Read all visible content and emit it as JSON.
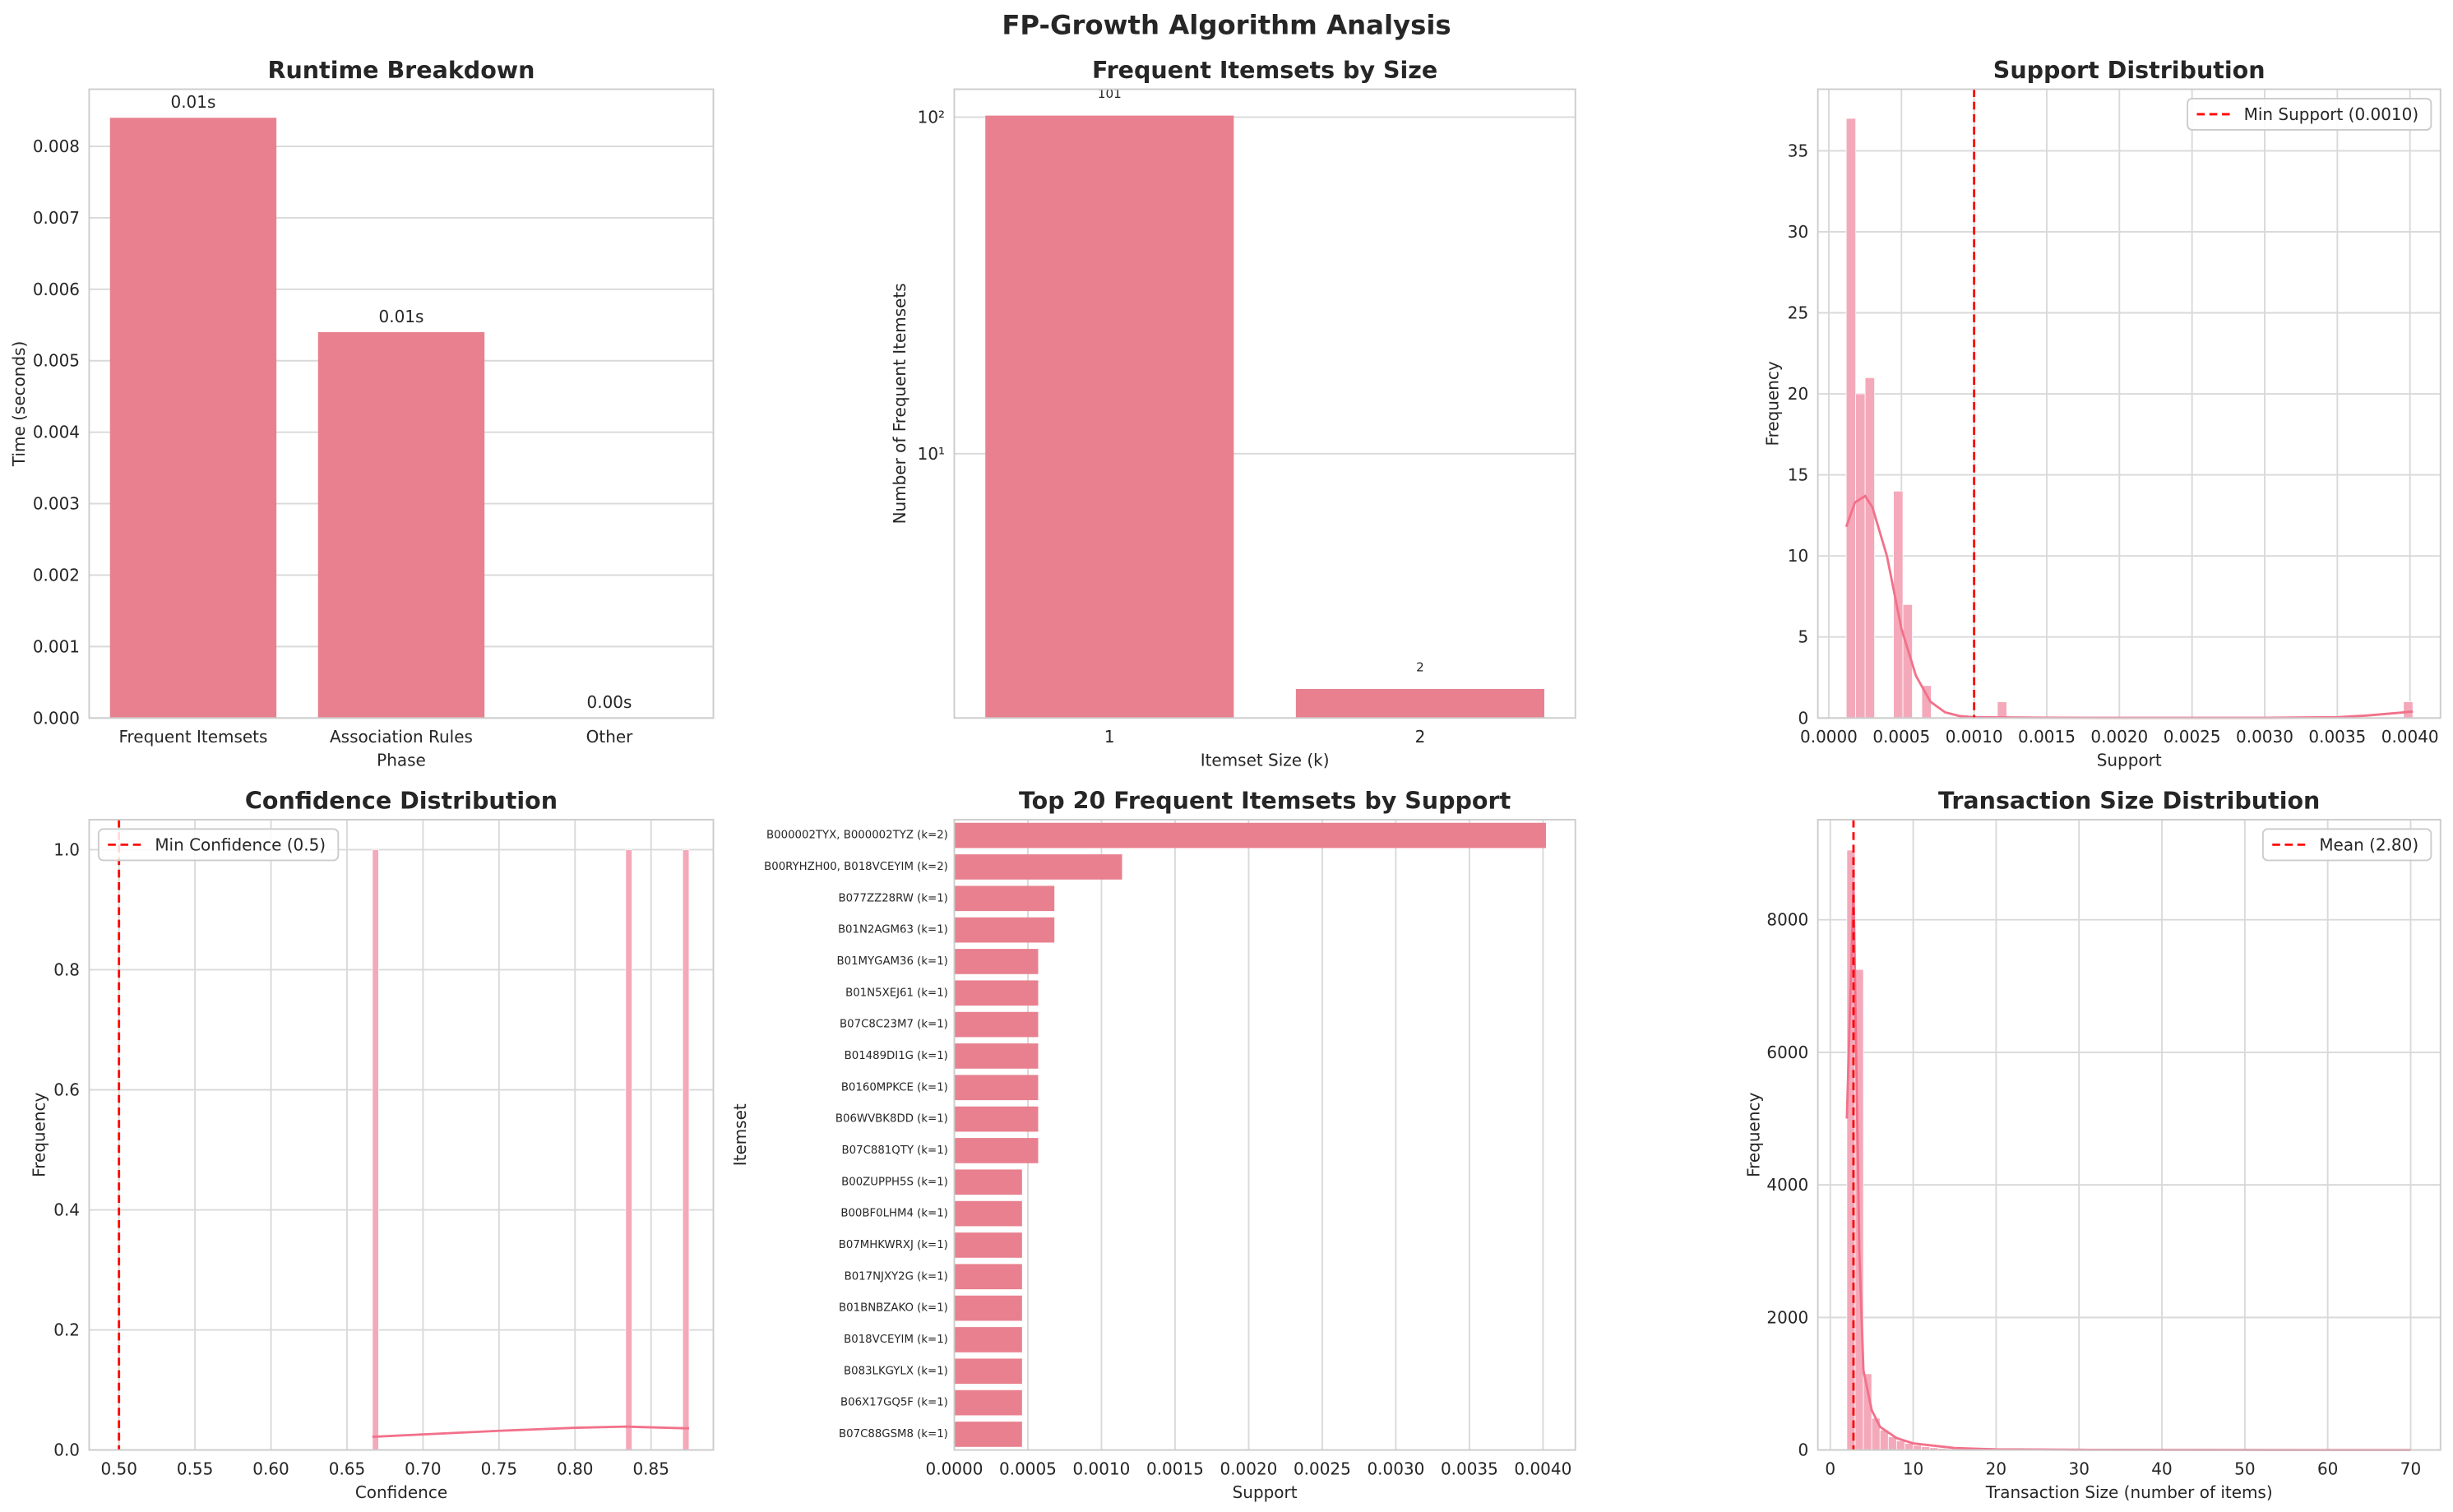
{
  "title": "FP-Growth Algorithm Analysis",
  "chart_data": [
    {
      "type": "bar",
      "title": "Runtime Breakdown",
      "xlabel": "Phase",
      "ylabel": "Time (seconds)",
      "categories": [
        "Frequent Itemsets",
        "Association Rules",
        "Other"
      ],
      "values": [
        0.0084,
        0.0054,
        0
      ],
      "value_labels": [
        "0.01s",
        "0.01s",
        "0.00s"
      ],
      "color": "#e8808f",
      "ylim": [
        0,
        0.0088
      ],
      "yticks": [
        {
          "value": 0,
          "label": "0.000"
        },
        0.001,
        0.002,
        0.003,
        0.004,
        0.005,
        0.006,
        0.007,
        0.008
      ],
      "grid": "y"
    },
    {
      "type": "bar",
      "title": "Frequent Itemsets by Size",
      "xlabel": "Itemset Size (k)",
      "ylabel": "Number of Frequent Itemsets",
      "categories": [
        "1",
        "2"
      ],
      "values": [
        101,
        2
      ],
      "color": "#e8808f",
      "log_y": true,
      "ylim": [
        1.64,
        121
      ],
      "yticks": [
        {
          "value": 10,
          "label": "10¹"
        },
        {
          "value": 100,
          "label": "10²"
        }
      ],
      "grid": "y"
    },
    {
      "type": "histogram",
      "title": "Support Distribution",
      "xlabel": "Support",
      "ylabel": "Frequency",
      "bins": [
        0.00012,
        0.000185,
        0.00025,
        0.000315,
        0.00038,
        0.000445,
        0.00051,
        0.000575,
        0.00064,
        0.000705,
        0.00077,
        0.000835,
        0.0009,
        0.000965,
        0.00103,
        0.001095,
        0.00116,
        0.001225,
        0.00129,
        0.001355,
        0.00142,
        0.001485,
        0.00155,
        0.001615,
        0.00168,
        0.001745,
        0.00181,
        0.001875,
        0.00194,
        0.002005,
        0.00207,
        0.002135,
        0.0022,
        0.002265,
        0.00233,
        0.002395,
        0.00246,
        0.002525,
        0.00259,
        0.002655,
        0.00272,
        0.002785,
        0.00285,
        0.002915,
        0.00298,
        0.003045,
        0.00311,
        0.003175,
        0.00324,
        0.003305,
        0.00337,
        0.003435,
        0.0035,
        0.003565,
        0.00363,
        0.003695,
        0.00376,
        0.003825,
        0.00389,
        0.003955,
        0.00402
      ],
      "counts": [
        37,
        20,
        21,
        0,
        0,
        14,
        7,
        0,
        2,
        0,
        0,
        0,
        0,
        0,
        0,
        0,
        1,
        0,
        0,
        0,
        0,
        0,
        0,
        0,
        0,
        0,
        0,
        0,
        0,
        0,
        0,
        0,
        0,
        0,
        0,
        0,
        0,
        0,
        0,
        0,
        0,
        0,
        0,
        0,
        0,
        0,
        0,
        0,
        0,
        0,
        0,
        0,
        0,
        0,
        0,
        0,
        0,
        0,
        0,
        1
      ],
      "color": "#f4a9ba",
      "kde": {
        "x": [
          0.00012,
          0.00018,
          0.00025,
          0.0003,
          0.0004,
          0.0005,
          0.0006,
          0.0007,
          0.0008,
          0.0009,
          0.001,
          0.0015,
          0.002,
          0.0025,
          0.003,
          0.0035,
          0.0037,
          0.0039,
          0.00402
        ],
        "values": [
          11.8,
          13.3,
          13.7,
          13,
          10,
          5.5,
          2.6,
          1,
          0.35,
          0.12,
          0.05,
          0.02,
          0.01,
          0.01,
          0.01,
          0.05,
          0.15,
          0.3,
          0.4
        ],
        "color": "#f2718a"
      },
      "vline": {
        "value": 0.001,
        "label": "Min Support (0.0010)",
        "color": "red"
      },
      "legend": "upper right",
      "xlim": [
        -7.55e-05,
        0.00421
      ],
      "ylim": [
        0,
        38.8
      ],
      "xticks": [
        {
          "value": 0,
          "label": "0.0000"
        },
        0.0005,
        {
          "value": 0.001,
          "label": "0.0010"
        },
        0.0015,
        {
          "value": 0.002,
          "label": "0.0020"
        },
        0.0025,
        {
          "value": 0.003,
          "label": "0.0030"
        },
        0.0035,
        {
          "value": 0.004,
          "label": "0.0040"
        }
      ],
      "yticks": [
        0,
        5,
        10,
        15,
        20,
        25,
        30,
        35
      ],
      "grid": "both"
    },
    {
      "type": "histogram",
      "title": "Confidence Distribution",
      "xlabel": "Confidence",
      "ylabel": "Frequency",
      "bins": [
        0.6667,
        0.6708,
        0.675,
        0.6792,
        0.6833,
        0.6875,
        0.6917,
        0.6958,
        0.7,
        0.7042,
        0.7083,
        0.7125,
        0.7167,
        0.7208,
        0.725,
        0.7292,
        0.7333,
        0.7375,
        0.7417,
        0.7458,
        0.75,
        0.7542,
        0.7583,
        0.7625,
        0.7667,
        0.7708,
        0.775,
        0.7792,
        0.7833,
        0.7875,
        0.7917,
        0.7958,
        0.8,
        0.8042,
        0.8083,
        0.8125,
        0.8167,
        0.8208,
        0.825,
        0.8292,
        0.8333,
        0.8375,
        0.8417,
        0.8458,
        0.85,
        0.8542,
        0.8583,
        0.8625,
        0.8667,
        0.8708,
        0.875
      ],
      "counts": [
        1,
        0,
        0,
        0,
        0,
        0,
        0,
        0,
        0,
        0,
        0,
        0,
        0,
        0,
        0,
        0,
        0,
        0,
        0,
        0,
        0,
        0,
        0,
        0,
        0,
        0,
        0,
        0,
        0,
        0,
        0,
        0,
        0,
        0,
        0,
        0,
        0,
        0,
        0,
        0,
        1,
        0,
        0,
        0,
        0,
        0,
        0,
        0,
        0,
        1
      ],
      "color": "#f4a9ba",
      "kde": {
        "x": [
          0.6667,
          0.7,
          0.75,
          0.8,
          0.8333,
          0.875
        ],
        "values": [
          0.022,
          0.026,
          0.032,
          0.037,
          0.039,
          0.036
        ],
        "color": "#f2718a"
      },
      "vline": {
        "value": 0.5,
        "label": "Min Confidence (0.5)",
        "color": "red"
      },
      "legend": "upper left",
      "xlim": [
        0.4804,
        0.891
      ],
      "ylim": [
        0,
        1.05
      ],
      "xticks": [
        {
          "value": 0.5,
          "label": "0.50"
        },
        0.55,
        {
          "value": 0.6,
          "label": "0.60"
        },
        0.65,
        {
          "value": 0.7,
          "label": "0.70"
        },
        0.75,
        {
          "value": 0.8,
          "label": "0.80"
        },
        0.85
      ],
      "yticks": [
        {
          "value": 0,
          "label": "0.0"
        },
        0.2,
        0.4,
        0.6,
        0.8,
        {
          "value": 1,
          "label": "1.0"
        }
      ],
      "grid": "both"
    },
    {
      "type": "barh",
      "title": "Top 20 Frequent Itemsets by Support",
      "xlabel": "Support",
      "ylabel": "Itemset",
      "categories": [
        "B000002TYX, B000002TYZ (k=2)",
        "B00RYHZH00, B018VCEYIM (k=2)",
        "B077ZZ28RW (k=1)",
        "B01N2AGM63 (k=1)",
        "B01MYGAM36 (k=1)",
        "B01N5XEJ61 (k=1)",
        "B07C8C23M7 (k=1)",
        "B01489DI1G (k=1)",
        "B0160MPKCE (k=1)",
        "B06WVBK8DD (k=1)",
        "B07C881QTY (k=1)",
        "B00ZUPPH5S (k=1)",
        "B00BF0LHM4 (k=1)",
        "B07MHKWRXJ (k=1)",
        "B017NJXY2G (k=1)",
        "B01BNBZAKO (k=1)",
        "B018VCEYIM (k=1)",
        "B083LKGYLX (k=1)",
        "B06X17GQ5F (k=1)",
        "B07C88GSM8 (k=1)"
      ],
      "values": [
        0.00402,
        0.00114,
        0.00068,
        0.00068,
        0.00057,
        0.00057,
        0.00057,
        0.00057,
        0.00057,
        0.00057,
        0.00057,
        0.00046,
        0.00046,
        0.00046,
        0.00046,
        0.00046,
        0.00046,
        0.00046,
        0.00046,
        0.00046
      ],
      "color": "#e8808f",
      "xlim": [
        0,
        0.00422
      ],
      "xticks": [
        {
          "value": 0,
          "label": "0.0000"
        },
        0.0005,
        {
          "value": 0.001,
          "label": "0.0010"
        },
        0.0015,
        {
          "value": 0.002,
          "label": "0.0020"
        },
        0.0025,
        {
          "value": 0.003,
          "label": "0.0030"
        },
        0.0035,
        {
          "value": 0.004,
          "label": "0.0040"
        }
      ],
      "grid": "x"
    },
    {
      "type": "histogram",
      "title": "Transaction Size Distribution",
      "xlabel": "Transaction Size (number of items)",
      "ylabel": "Frequency",
      "bins": [
        1,
        2,
        3,
        4,
        5,
        6,
        7,
        8,
        9,
        10,
        11,
        12,
        13,
        14,
        15,
        16,
        17,
        18,
        19,
        20,
        21,
        22,
        23,
        24,
        25,
        26,
        27,
        28,
        29,
        30,
        31,
        32,
        33,
        34,
        35,
        36,
        37,
        38,
        39,
        40,
        41,
        42,
        43,
        44,
        45,
        46,
        47,
        48,
        49,
        50,
        51,
        52,
        53,
        54,
        55,
        56,
        57,
        58,
        59,
        60,
        61,
        62,
        63,
        64,
        65,
        66,
        67,
        68,
        69,
        70
      ],
      "counts": [
        0,
        9050,
        7250,
        1150,
        480,
        300,
        200,
        140,
        100,
        70,
        50,
        35,
        25,
        18,
        12,
        9,
        6,
        4,
        3,
        2,
        2,
        1,
        1,
        0,
        0,
        0,
        0,
        1,
        0,
        0,
        0,
        0,
        0,
        0,
        0,
        0,
        0,
        0,
        0,
        0,
        0,
        0,
        0,
        0,
        0,
        0,
        0,
        0,
        0,
        0,
        0,
        0,
        0,
        0,
        0,
        0,
        0,
        0,
        0,
        0,
        0,
        0,
        0,
        0,
        0,
        0,
        0,
        0,
        1
      ],
      "color": "#f4a9ba",
      "kde": {
        "x": [
          2,
          2.8,
          3,
          3.5,
          4,
          5,
          6,
          8,
          10,
          15,
          20,
          30,
          70
        ],
        "values": [
          5000,
          8500,
          7000,
          3000,
          1200,
          600,
          350,
          180,
          100,
          30,
          10,
          3,
          0
        ],
        "color": "#f2718a"
      },
      "vline": {
        "value": 2.8,
        "label": "Mean (2.80)",
        "color": "red"
      },
      "legend": "upper right",
      "xlim": [
        -1.5,
        73.6
      ],
      "ylim": [
        0,
        9510
      ],
      "xticks": [
        0,
        10,
        20,
        30,
        40,
        50,
        60,
        70
      ],
      "yticks": [
        0,
        2000,
        4000,
        6000,
        8000
      ],
      "grid": "both"
    }
  ]
}
